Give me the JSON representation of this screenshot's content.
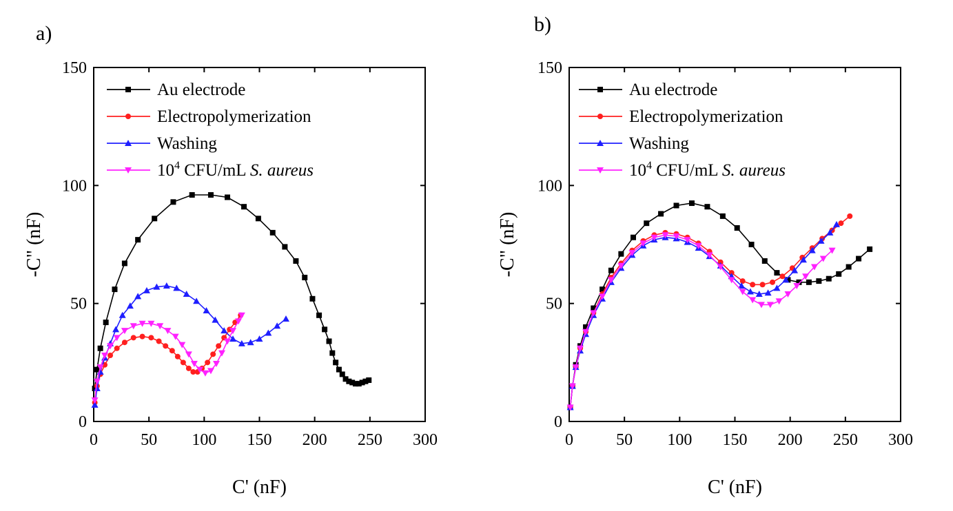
{
  "figure": {
    "panels": [
      "a)",
      "b)"
    ]
  },
  "chart_data": [
    {
      "type": "line",
      "panel_label": "a)",
      "xlabel": "C' (nF)",
      "ylabel": "-C\" (nF)",
      "xlim": [
        0,
        300
      ],
      "ylim": [
        0,
        150
      ],
      "xticks": [
        0,
        50,
        100,
        150,
        200,
        250,
        300
      ],
      "yticks": [
        0,
        50,
        100,
        150
      ],
      "legend_position": "top-left",
      "series": [
        {
          "name": "Au electrode",
          "color": "#000000",
          "marker": "square",
          "x": [
            1,
            3,
            6,
            11,
            19,
            28,
            40,
            55,
            72,
            89,
            106,
            121,
            136,
            149,
            162,
            173,
            183,
            191,
            198,
            204,
            209,
            213,
            216,
            219,
            222,
            225,
            228,
            231,
            234,
            237,
            240,
            243,
            246,
            249
          ],
          "y": [
            14,
            22,
            31,
            42,
            56,
            67,
            77,
            86,
            93,
            96,
            96,
            95,
            91,
            86,
            80,
            74,
            68,
            61,
            52,
            45,
            39,
            34,
            29,
            25,
            22,
            20,
            18,
            17,
            16.5,
            16,
            16,
            16.5,
            17,
            17.5
          ]
        },
        {
          "name": "Electropolymerization",
          "color": "#ff1f1f",
          "marker": "circle",
          "x": [
            1,
            3,
            6,
            10,
            15,
            21,
            28,
            36,
            44,
            52,
            59,
            65,
            71,
            76,
            81,
            86,
            90,
            94,
            98,
            103,
            108,
            113,
            118,
            123,
            128,
            133
          ],
          "y": [
            8,
            15,
            20,
            24,
            28,
            31,
            33.5,
            35.5,
            36,
            35.5,
            34,
            32,
            30,
            27.5,
            25,
            22.5,
            21,
            21,
            22.5,
            25,
            28.5,
            32,
            35.5,
            39,
            42,
            45
          ]
        },
        {
          "name": "Washing",
          "color": "#1f1fff",
          "marker": "triangle-up",
          "x": [
            1,
            3,
            6,
            10,
            15,
            20,
            26,
            33,
            40,
            48,
            57,
            66,
            75,
            84,
            93,
            102,
            110,
            118,
            126,
            134,
            142,
            150,
            158,
            166,
            174
          ],
          "y": [
            7,
            14,
            21,
            27,
            33,
            39,
            45,
            49,
            53,
            55.5,
            57,
            57.5,
            56.5,
            54,
            51,
            47,
            43,
            38.5,
            35,
            33,
            33.5,
            35,
            37.5,
            40.5,
            43.5
          ]
        },
        {
          "name": "10⁴ CFU/mL S. aureus",
          "color": "#ff22ff",
          "marker": "triangle-down",
          "x": [
            1,
            3,
            6,
            10,
            15,
            21,
            28,
            36,
            44,
            52,
            60,
            67,
            74,
            80,
            86,
            91,
            96,
            101,
            106,
            111,
            116,
            121,
            126,
            131,
            134
          ],
          "y": [
            9,
            17,
            23,
            28,
            32,
            35.5,
            38.5,
            40.5,
            41.5,
            41.5,
            40.5,
            38.5,
            36,
            32.5,
            28.5,
            24.5,
            22,
            20.5,
            21.5,
            24.5,
            29,
            34,
            38.5,
            42.5,
            45
          ]
        }
      ]
    },
    {
      "type": "line",
      "panel_label": "b)",
      "xlabel": "C' (nF)",
      "ylabel": "-C\" (nF)",
      "xlim": [
        0,
        300
      ],
      "ylim": [
        0,
        150
      ],
      "xticks": [
        0,
        50,
        100,
        150,
        200,
        250,
        300
      ],
      "yticks": [
        0,
        50,
        100,
        150
      ],
      "legend_position": "top-left",
      "series": [
        {
          "name": "Au electrode",
          "color": "#000000",
          "marker": "square",
          "x": [
            1,
            3,
            6,
            10,
            15,
            22,
            30,
            38,
            47,
            58,
            70,
            83,
            97,
            111,
            125,
            139,
            152,
            165,
            177,
            188,
            198,
            208,
            217,
            226,
            235,
            244,
            253,
            262,
            272
          ],
          "y": [
            6,
            15,
            24,
            32,
            40,
            48,
            56,
            64,
            71,
            78,
            84,
            88,
            91.5,
            92.5,
            91,
            87,
            82,
            75,
            68,
            63,
            60,
            59,
            59,
            59.5,
            60.5,
            62.5,
            65.5,
            69,
            73
          ]
        },
        {
          "name": "Electropolymerization",
          "color": "#ff1f1f",
          "marker": "circle",
          "x": [
            1,
            3,
            6,
            10,
            15,
            22,
            30,
            38,
            47,
            57,
            67,
            77,
            87,
            97,
            107,
            117,
            127,
            137,
            147,
            157,
            166,
            175,
            184,
            193,
            202,
            211,
            220,
            229,
            238,
            246,
            254
          ],
          "y": [
            6,
            15,
            23,
            31,
            38,
            46,
            54,
            61,
            67,
            72.5,
            76.5,
            79,
            80,
            79.5,
            78,
            75.5,
            72,
            67.5,
            63,
            59.5,
            58,
            58,
            59,
            61.5,
            65,
            69.5,
            73.5,
            77.5,
            81,
            84,
            87
          ]
        },
        {
          "name": "Washing",
          "color": "#1f1fff",
          "marker": "triangle-up",
          "x": [
            1,
            3,
            6,
            10,
            15,
            22,
            30,
            38,
            47,
            57,
            67,
            77,
            87,
            97,
            107,
            117,
            127,
            137,
            147,
            156,
            164,
            172,
            180,
            188,
            196,
            204,
            212,
            220,
            228,
            236,
            242
          ],
          "y": [
            6,
            15,
            23,
            30,
            37,
            45,
            52,
            59,
            65,
            70.5,
            74.5,
            77,
            78,
            77.5,
            76,
            73.5,
            70,
            66,
            61.5,
            57.5,
            55,
            54,
            54.5,
            56.5,
            60,
            64,
            68.5,
            72.5,
            76.5,
            80,
            83.5
          ]
        },
        {
          "name": "10⁴ CFU/mL S. aureus",
          "color": "#ff22ff",
          "marker": "triangle-down",
          "x": [
            1,
            3,
            6,
            10,
            15,
            22,
            30,
            38,
            47,
            57,
            67,
            77,
            87,
            97,
            107,
            117,
            127,
            137,
            147,
            157,
            166,
            174,
            182,
            190,
            198,
            206,
            214,
            222,
            230,
            238
          ],
          "y": [
            6,
            15,
            23,
            31,
            38,
            46,
            53,
            60,
            66,
            71.5,
            75.5,
            78,
            79,
            78.5,
            77,
            74.5,
            70.5,
            65.5,
            60,
            55,
            51.5,
            49.5,
            49.5,
            51,
            54,
            57.5,
            61.5,
            65.5,
            69,
            72.5
          ]
        }
      ]
    }
  ]
}
